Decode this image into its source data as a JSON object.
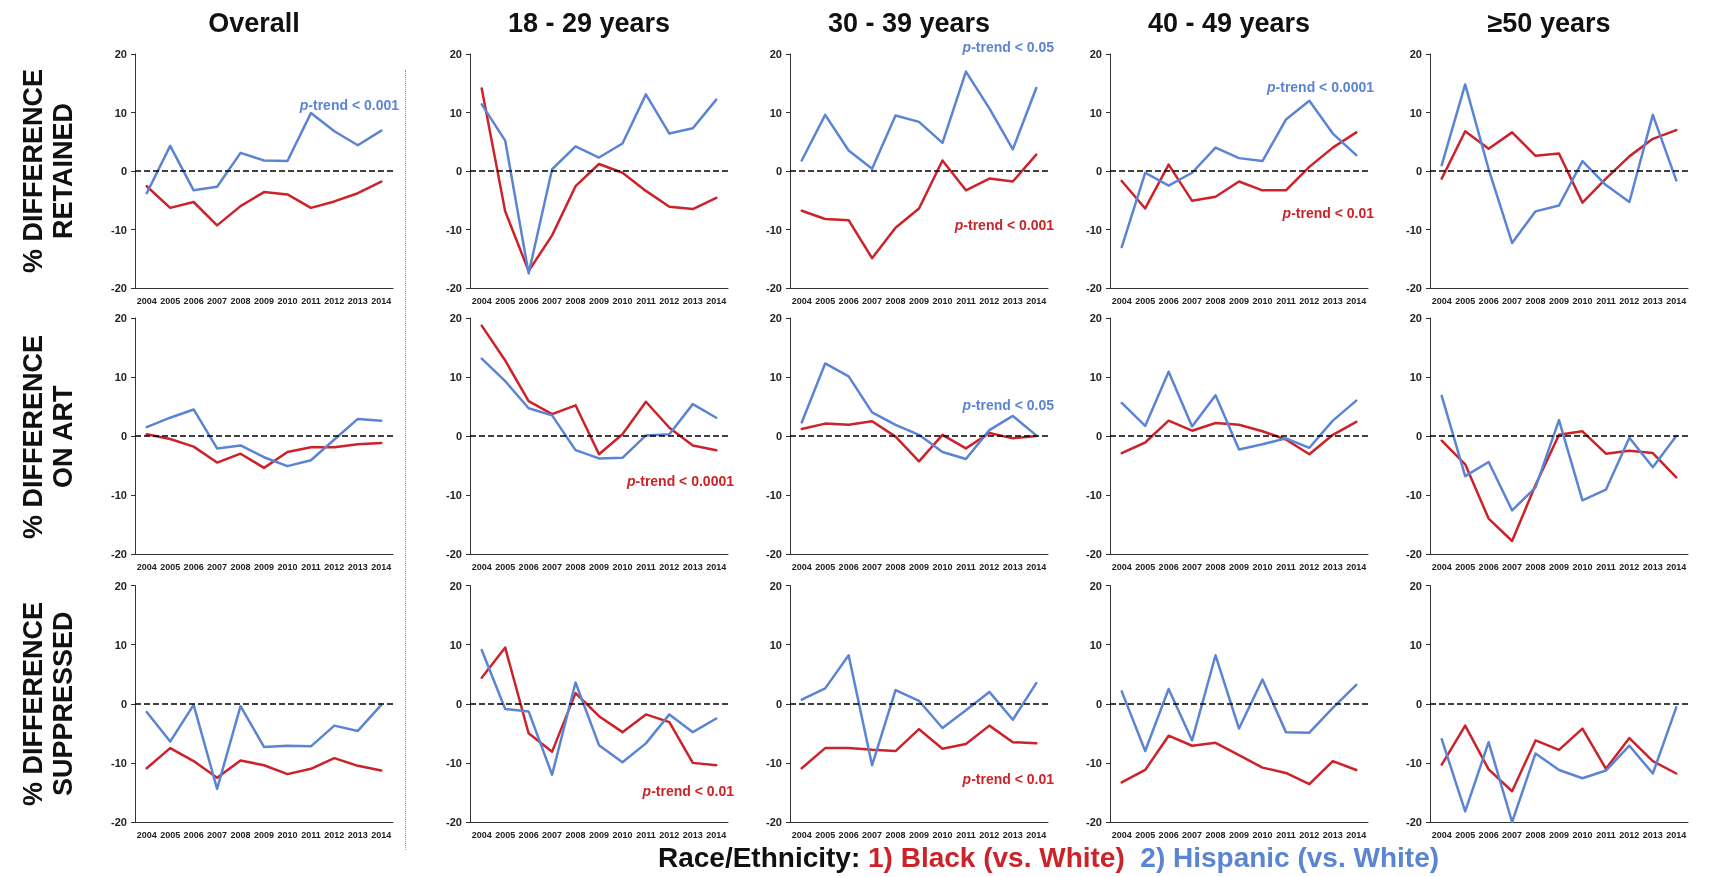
{
  "chart_data": [
    {
      "type": "line",
      "title": "Overall",
      "ylabel": "% DIFFERENCE RETAINED",
      "categories": [
        "2004",
        "2005",
        "2006",
        "2007",
        "2008",
        "2009",
        "2010",
        "2011",
        "2012",
        "2013",
        "2014"
      ],
      "ylim": [
        -20,
        20
      ],
      "yticks": [
        -20,
        -10,
        0,
        10,
        20
      ],
      "marker": "none",
      "ref_lines": [
        {
          "axis": "y",
          "value": 0,
          "color": "#000000",
          "line_style": "dashed"
        }
      ],
      "annotations": [
        "p-trend < 0.001"
      ],
      "series": [
        {
          "color": "#cc2229",
          "values": [
            -2.6,
            -6.3,
            -5.3,
            -9.3,
            -6.0,
            -3.6,
            -4.0,
            -6.3,
            -5.2,
            -3.8,
            -1.8
          ]
        },
        {
          "color": "#5b84d3",
          "values": [
            -3.8,
            4.3,
            -3.3,
            -2.7,
            3.1,
            1.8,
            1.7,
            9.9,
            6.8,
            4.4,
            6.9
          ]
        }
      ]
    },
    {
      "type": "line",
      "title": "18 - 29 years",
      "categories": [
        "2004",
        "2005",
        "2006",
        "2007",
        "2008",
        "2009",
        "2010",
        "2011",
        "2012",
        "2013",
        "2014"
      ],
      "ylim": [
        -20,
        20
      ],
      "yticks": [
        -20,
        -10,
        0,
        10,
        20
      ],
      "marker": "none",
      "ref_lines": [
        {
          "axis": "y",
          "value": 0,
          "color": "#000000",
          "line_style": "dashed"
        }
      ],
      "series": [
        {
          "color": "#cc2229",
          "values": [
            14.1,
            -6.9,
            -17.1,
            -11.0,
            -2.6,
            1.2,
            -0.3,
            -3.4,
            -6.1,
            -6.5,
            -4.6
          ]
        },
        {
          "color": "#5b84d3",
          "values": [
            11.4,
            5.2,
            -17.5,
            0.3,
            4.2,
            2.3,
            4.7,
            13.1,
            6.4,
            7.3,
            12.2
          ]
        }
      ]
    },
    {
      "type": "line",
      "title": "30 - 39 years",
      "categories": [
        "2004",
        "2005",
        "2006",
        "2007",
        "2008",
        "2009",
        "2010",
        "2011",
        "2012",
        "2013",
        "2014"
      ],
      "ylim": [
        -20,
        20
      ],
      "yticks": [
        -20,
        -10,
        0,
        10,
        20
      ],
      "marker": "none",
      "ref_lines": [
        {
          "axis": "y",
          "value": 0,
          "color": "#000000",
          "line_style": "dashed"
        }
      ],
      "annotations": [
        "p-trend < 0.05",
        "p-trend < 0.001"
      ],
      "series": [
        {
          "color": "#cc2229",
          "values": [
            -6.8,
            -8.2,
            -8.4,
            -14.9,
            -9.7,
            -6.4,
            1.8,
            -3.3,
            -1.3,
            -1.8,
            2.8
          ]
        },
        {
          "color": "#5b84d3",
          "values": [
            1.8,
            9.6,
            3.5,
            0.4,
            9.5,
            8.4,
            4.8,
            17.0,
            10.7,
            3.7,
            14.2
          ]
        }
      ]
    },
    {
      "type": "line",
      "title": "40 - 49 years",
      "categories": [
        "2004",
        "2005",
        "2006",
        "2007",
        "2008",
        "2009",
        "2010",
        "2011",
        "2012",
        "2013",
        "2014"
      ],
      "ylim": [
        -20,
        20
      ],
      "yticks": [
        -20,
        -10,
        0,
        10,
        20
      ],
      "marker": "none",
      "ref_lines": [
        {
          "axis": "y",
          "value": 0,
          "color": "#000000",
          "line_style": "dashed"
        }
      ],
      "annotations": [
        "p-trend < 0.0001",
        "p-trend < 0.01"
      ],
      "series": [
        {
          "color": "#cc2229",
          "values": [
            -1.7,
            -6.4,
            1.1,
            -5.1,
            -4.4,
            -1.8,
            -3.3,
            -3.3,
            0.7,
            4.0,
            6.6
          ]
        },
        {
          "color": "#5b84d3",
          "values": [
            -13.0,
            -0.3,
            -2.5,
            -0.3,
            4.0,
            2.2,
            1.7,
            8.8,
            12.0,
            6.4,
            2.7
          ]
        }
      ]
    },
    {
      "type": "line",
      "title": "≥50 years",
      "categories": [
        "2004",
        "2005",
        "2006",
        "2007",
        "2008",
        "2009",
        "2010",
        "2011",
        "2012",
        "2013",
        "2014"
      ],
      "ylim": [
        -20,
        20
      ],
      "yticks": [
        -20,
        -10,
        0,
        10,
        20
      ],
      "marker": "none",
      "ref_lines": [
        {
          "axis": "y",
          "value": 0,
          "color": "#000000",
          "line_style": "dashed"
        }
      ],
      "series": [
        {
          "color": "#cc2229",
          "values": [
            -1.3,
            6.8,
            3.8,
            6.6,
            2.6,
            3.0,
            -5.4,
            -1.3,
            2.5,
            5.5,
            7.0
          ]
        },
        {
          "color": "#5b84d3",
          "values": [
            1.0,
            14.8,
            0.3,
            -12.3,
            -6.9,
            -5.9,
            1.7,
            -2.4,
            -5.3,
            9.6,
            -1.6
          ]
        }
      ]
    },
    {
      "type": "line",
      "ylabel": "% DIFFERENCE ON ART",
      "categories": [
        "2004",
        "2005",
        "2006",
        "2007",
        "2008",
        "2009",
        "2010",
        "2011",
        "2012",
        "2013",
        "2014"
      ],
      "ylim": [
        -20,
        20
      ],
      "yticks": [
        -20,
        -10,
        0,
        10,
        20
      ],
      "marker": "none",
      "ref_lines": [
        {
          "axis": "y",
          "value": 0,
          "color": "#000000",
          "line_style": "dashed"
        }
      ],
      "series": [
        {
          "color": "#cc2229",
          "values": [
            0.3,
            -0.5,
            -1.8,
            -4.5,
            -3.0,
            -5.4,
            -2.7,
            -1.9,
            -1.9,
            -1.4,
            -1.2
          ]
        },
        {
          "color": "#5b84d3",
          "values": [
            1.5,
            3.1,
            4.5,
            -2.1,
            -1.6,
            -3.6,
            -5.1,
            -4.1,
            -0.6,
            2.9,
            2.6
          ]
        }
      ]
    },
    {
      "type": "line",
      "categories": [
        "2004",
        "2005",
        "2006",
        "2007",
        "2008",
        "2009",
        "2010",
        "2011",
        "2012",
        "2013",
        "2014"
      ],
      "ylim": [
        -20,
        20
      ],
      "yticks": [
        -20,
        -10,
        0,
        10,
        20
      ],
      "marker": "none",
      "ref_lines": [
        {
          "axis": "y",
          "value": 0,
          "color": "#000000",
          "line_style": "dashed"
        }
      ],
      "annotations": [
        "p-trend < 0.0001"
      ],
      "series": [
        {
          "color": "#cc2229",
          "values": [
            18.7,
            12.8,
            5.9,
            3.7,
            5.2,
            -3.1,
            0.3,
            5.8,
            1.4,
            -1.6,
            -2.4
          ]
        },
        {
          "color": "#5b84d3",
          "values": [
            13.1,
            9.3,
            4.7,
            3.5,
            -2.4,
            -3.8,
            -3.7,
            0.1,
            0.3,
            5.4,
            3.1
          ]
        }
      ]
    },
    {
      "type": "line",
      "categories": [
        "2004",
        "2005",
        "2006",
        "2007",
        "2008",
        "2009",
        "2010",
        "2011",
        "2012",
        "2013",
        "2014"
      ],
      "ylim": [
        -20,
        20
      ],
      "yticks": [
        -20,
        -10,
        0,
        10,
        20
      ],
      "marker": "none",
      "ref_lines": [
        {
          "axis": "y",
          "value": 0,
          "color": "#000000",
          "line_style": "dashed"
        }
      ],
      "annotations": [
        "p-trend < 0.05"
      ],
      "series": [
        {
          "color": "#cc2229",
          "values": [
            1.2,
            2.1,
            1.9,
            2.5,
            -0.1,
            -4.3,
            0.2,
            -2.1,
            0.5,
            -0.4,
            0.0
          ]
        },
        {
          "color": "#5b84d3",
          "values": [
            2.3,
            12.3,
            10.1,
            4.0,
            1.9,
            0.2,
            -2.7,
            -3.9,
            1.0,
            3.4,
            0.1
          ]
        }
      ]
    },
    {
      "type": "line",
      "categories": [
        "2004",
        "2005",
        "2006",
        "2007",
        "2008",
        "2009",
        "2010",
        "2011",
        "2012",
        "2013",
        "2014"
      ],
      "ylim": [
        -20,
        20
      ],
      "yticks": [
        -20,
        -10,
        0,
        10,
        20
      ],
      "marker": "none",
      "ref_lines": [
        {
          "axis": "y",
          "value": 0,
          "color": "#000000",
          "line_style": "dashed"
        }
      ],
      "series": [
        {
          "color": "#cc2229",
          "values": [
            -2.9,
            -1.1,
            2.6,
            0.9,
            2.2,
            1.9,
            0.8,
            -0.6,
            -3.1,
            0.2,
            2.4
          ]
        },
        {
          "color": "#5b84d3",
          "values": [
            5.6,
            1.7,
            10.9,
            1.6,
            6.9,
            -2.3,
            -1.4,
            -0.4,
            -2.0,
            2.6,
            6.0
          ]
        }
      ]
    },
    {
      "type": "line",
      "categories": [
        "2004",
        "2005",
        "2006",
        "2007",
        "2008",
        "2009",
        "2010",
        "2011",
        "2012",
        "2013",
        "2014"
      ],
      "ylim": [
        -20,
        20
      ],
      "yticks": [
        -20,
        -10,
        0,
        10,
        20
      ],
      "marker": "none",
      "ref_lines": [
        {
          "axis": "y",
          "value": 0,
          "color": "#000000",
          "line_style": "dashed"
        }
      ],
      "series": [
        {
          "color": "#cc2229",
          "values": [
            -0.8,
            -4.8,
            -14.0,
            -17.8,
            -8.3,
            0.2,
            0.8,
            -3.0,
            -2.5,
            -2.9,
            -7.0
          ]
        },
        {
          "color": "#5b84d3",
          "values": [
            6.8,
            -6.8,
            -4.4,
            -12.6,
            -8.7,
            2.7,
            -10.9,
            -9.1,
            -0.3,
            -5.3,
            0.0
          ]
        }
      ]
    },
    {
      "type": "line",
      "ylabel": "% DIFFERENCE SUPPRESSED",
      "categories": [
        "2004",
        "2005",
        "2006",
        "2007",
        "2008",
        "2009",
        "2010",
        "2011",
        "2012",
        "2013",
        "2014"
      ],
      "ylim": [
        -20,
        20
      ],
      "yticks": [
        -20,
        -10,
        0,
        10,
        20
      ],
      "marker": "none",
      "ref_lines": [
        {
          "axis": "y",
          "value": 0,
          "color": "#000000",
          "line_style": "dashed"
        }
      ],
      "series": [
        {
          "color": "#cc2229",
          "values": [
            -10.9,
            -7.5,
            -9.7,
            -12.5,
            -9.6,
            -10.4,
            -11.9,
            -11.0,
            -9.2,
            -10.5,
            -11.3
          ]
        },
        {
          "color": "#5b84d3",
          "values": [
            -1.4,
            -6.4,
            -0.2,
            -14.4,
            -0.4,
            -7.3,
            -7.1,
            -7.2,
            -3.7,
            -4.6,
            -0.2
          ]
        }
      ]
    },
    {
      "type": "line",
      "categories": [
        "2004",
        "2005",
        "2006",
        "2007",
        "2008",
        "2009",
        "2010",
        "2011",
        "2012",
        "2013",
        "2014"
      ],
      "ylim": [
        -20,
        20
      ],
      "yticks": [
        -20,
        -10,
        0,
        10,
        20
      ],
      "marker": "none",
      "ref_lines": [
        {
          "axis": "y",
          "value": 0,
          "color": "#000000",
          "line_style": "dashed"
        }
      ],
      "annotations": [
        "p-trend < 0.01"
      ],
      "series": [
        {
          "color": "#cc2229",
          "values": [
            4.4,
            9.5,
            -5.0,
            -8.1,
            1.8,
            -2.1,
            -4.8,
            -1.8,
            -3.1,
            -10.0,
            -10.4
          ]
        },
        {
          "color": "#5b84d3",
          "values": [
            9.1,
            -0.9,
            -1.3,
            -12.0,
            3.6,
            -7.0,
            -9.9,
            -6.7,
            -1.8,
            -4.8,
            -2.5
          ]
        }
      ]
    },
    {
      "type": "line",
      "legend": "bottom",
      "legend_title": "Race/Ethnicity:",
      "categories": [
        "2004",
        "2005",
        "2006",
        "2007",
        "2008",
        "2009",
        "2010",
        "2011",
        "2012",
        "2013",
        "2014"
      ],
      "ylim": [
        -20,
        20
      ],
      "yticks": [
        -20,
        -10,
        0,
        10,
        20
      ],
      "marker": "none",
      "ref_lines": [
        {
          "axis": "y",
          "value": 0,
          "color": "#000000",
          "line_style": "dashed"
        }
      ],
      "annotations": [
        "p-trend < 0.01"
      ],
      "series": [
        {
          "name": "1) Black (vs. White)",
          "color": "#cc2229",
          "values": [
            -10.9,
            -7.5,
            -7.5,
            -7.8,
            -8.0,
            -4.3,
            -7.6,
            -6.8,
            -3.7,
            -6.5,
            -6.7
          ]
        },
        {
          "name": "2) Hispanic (vs. White)",
          "color": "#5b84d3",
          "values": [
            0.7,
            2.6,
            8.2,
            -10.4,
            2.3,
            0.5,
            -4.1,
            -1.1,
            2.0,
            -2.7,
            3.5
          ]
        }
      ]
    },
    {
      "type": "line",
      "categories": [
        "2004",
        "2005",
        "2006",
        "2007",
        "2008",
        "2009",
        "2010",
        "2011",
        "2012",
        "2013",
        "2014"
      ],
      "ylim": [
        -20,
        20
      ],
      "yticks": [
        -20,
        -10,
        0,
        10,
        20
      ],
      "marker": "none",
      "ref_lines": [
        {
          "axis": "y",
          "value": 0,
          "color": "#000000",
          "line_style": "dashed"
        }
      ],
      "series": [
        {
          "color": "#cc2229",
          "values": [
            -13.3,
            -11.2,
            -5.4,
            -7.1,
            -6.6,
            -8.7,
            -10.8,
            -11.7,
            -13.6,
            -9.7,
            -11.2
          ]
        },
        {
          "color": "#5b84d3",
          "values": [
            2.1,
            -8.0,
            2.5,
            -6.2,
            8.2,
            -4.2,
            4.1,
            -4.8,
            -4.9,
            -0.7,
            3.2
          ]
        }
      ]
    },
    {
      "type": "line",
      "categories": [
        "2004",
        "2005",
        "2006",
        "2007",
        "2008",
        "2009",
        "2010",
        "2011",
        "2012",
        "2013",
        "2014"
      ],
      "ylim": [
        -20,
        20
      ],
      "yticks": [
        -20,
        -10,
        0,
        10,
        20
      ],
      "marker": "none",
      "ref_lines": [
        {
          "axis": "y",
          "value": 0,
          "color": "#000000",
          "line_style": "dashed"
        }
      ],
      "series": [
        {
          "color": "#cc2229",
          "values": [
            -10.3,
            -3.7,
            -11.1,
            -14.8,
            -6.2,
            -7.8,
            -4.2,
            -11.0,
            -5.8,
            -9.7,
            -11.8
          ]
        },
        {
          "color": "#5b84d3",
          "values": [
            -6.0,
            -18.2,
            -6.5,
            -20,
            -8.4,
            -11.2,
            -12.6,
            -11.3,
            -7.1,
            -11.8,
            -0.6
          ]
        }
      ]
    }
  ]
}
